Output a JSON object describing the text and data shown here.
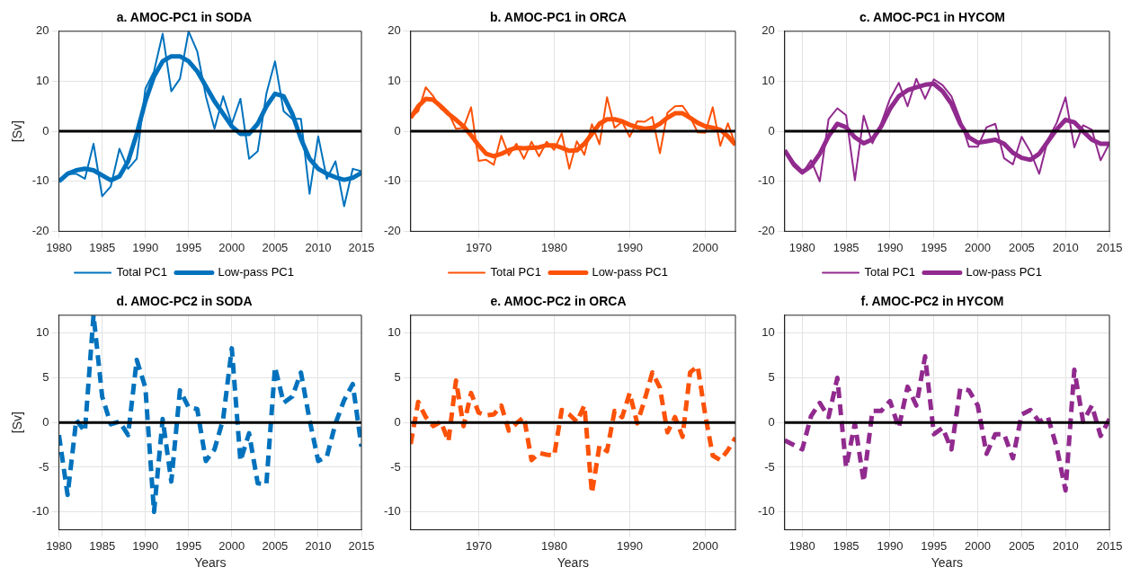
{
  "chart_data": [
    {
      "type": "line",
      "title": "a. AMOC-PC1 in SODA",
      "ylabel": "[Sv]",
      "xlim": [
        1980,
        2015
      ],
      "xticks": [
        1980,
        1985,
        1990,
        1995,
        2000,
        2005,
        2010,
        2015
      ],
      "ylim": [
        -20,
        20
      ],
      "yticks": [
        -20,
        -10,
        0,
        10,
        20
      ],
      "grid": true,
      "legend": "bottom",
      "ref_lines": [
        {
          "axis": "y",
          "value": 0,
          "color": "#000000"
        }
      ],
      "x": [
        1980,
        1981,
        1982,
        1983,
        1984,
        1985,
        1986,
        1987,
        1988,
        1989,
        1990,
        1991,
        1992,
        1993,
        1994,
        1995,
        1996,
        1997,
        1998,
        1999,
        2000,
        2001,
        2002,
        2003,
        2004,
        2005,
        2006,
        2007,
        2008,
        2009,
        2010,
        2011,
        2012,
        2013,
        2014,
        2015
      ],
      "series": [
        {
          "name": "Total PC1",
          "color": "#0072bd",
          "values": [
            -10,
            -8.5,
            -8.5,
            -9.5,
            -2.5,
            -13,
            -11,
            -3.5,
            -7.5,
            -5.5,
            8.5,
            12,
            19.5,
            8,
            10.5,
            20,
            16,
            7,
            0.5,
            7,
            1.5,
            6.5,
            -5.5,
            -4,
            7.5,
            14,
            4,
            2.5,
            2.5,
            -12.5,
            -1,
            -9.5,
            -6,
            -15,
            -7.5,
            -8
          ]
        },
        {
          "name": "Low-pass PC1",
          "color": "#0072bd",
          "values": [
            -10,
            -8.5,
            -7.8,
            -7.5,
            -7.8,
            -8.8,
            -9.8,
            -9,
            -6,
            -0.5,
            6,
            11,
            14,
            15,
            15,
            14,
            12,
            9,
            6,
            3.5,
            1,
            -0.5,
            -0.5,
            1.5,
            5,
            7.5,
            7,
            3.5,
            -1.5,
            -5.5,
            -7.5,
            -8.5,
            -9.2,
            -9.7,
            -9.3,
            -8.3
          ]
        }
      ]
    },
    {
      "type": "line",
      "title": "b. AMOC-PC1 in ORCA",
      "xlim": [
        1961,
        2004
      ],
      "xticks": [
        1970,
        1980,
        1990,
        2000
      ],
      "ylim": [
        -20,
        20
      ],
      "yticks": [
        -20,
        -10,
        0,
        10,
        20
      ],
      "grid": true,
      "legend": "bottom",
      "ref_lines": [
        {
          "axis": "y",
          "value": 0,
          "color": "#000000"
        }
      ],
      "x": [
        1961,
        1962,
        1963,
        1964,
        1965,
        1966,
        1967,
        1968,
        1969,
        1970,
        1971,
        1972,
        1973,
        1974,
        1975,
        1976,
        1977,
        1978,
        1979,
        1980,
        1981,
        1982,
        1983,
        1984,
        1985,
        1986,
        1987,
        1988,
        1989,
        1990,
        1991,
        1992,
        1993,
        1994,
        1995,
        1996,
        1997,
        1998,
        1999,
        2000,
        2001,
        2002,
        2003,
        2004
      ],
      "series": [
        {
          "name": "Total PC1",
          "color": "#fc5208",
          "values": [
            2.7,
            4,
            8.8,
            7,
            4.5,
            3.7,
            0.5,
            0.7,
            4.8,
            -5.9,
            -5.7,
            -6.7,
            -0.9,
            -4.8,
            -2.5,
            -5.5,
            -2.1,
            -5,
            -2.1,
            -3.7,
            -0.4,
            -7.5,
            -2,
            -4.7,
            1.4,
            -2.6,
            6.8,
            0.7,
            1.9,
            -1.1,
            2,
            1.9,
            2.9,
            -4.4,
            3.7,
            5,
            5.1,
            2.9,
            -0.2,
            -0.3,
            4.8,
            -2.9,
            1.6,
            -2.7
          ]
        },
        {
          "name": "Low-pass PC1",
          "color": "#fc5208",
          "values": [
            2.7,
            5,
            6.5,
            6.3,
            5,
            3.5,
            2.3,
            1,
            -0.8,
            -2.8,
            -4.5,
            -5,
            -4.5,
            -3.8,
            -3.3,
            -3.4,
            -3.3,
            -3.2,
            -2.8,
            -2.8,
            -3.3,
            -3.9,
            -3.8,
            -2.5,
            -0.5,
            1.5,
            2.4,
            2.4,
            2,
            1.3,
            0.8,
            0.5,
            0.7,
            1.5,
            2.7,
            3.6,
            3.6,
            2.7,
            1.7,
            1,
            0.7,
            0.3,
            -1,
            -2.7
          ]
        }
      ]
    },
    {
      "type": "line",
      "title": "c. AMOC-PC1 in HYCOM",
      "xlim": [
        1978,
        2015
      ],
      "xticks": [
        1980,
        1985,
        1990,
        1995,
        2000,
        2005,
        2010,
        2015
      ],
      "ylim": [
        -20,
        20
      ],
      "yticks": [
        -20,
        -10,
        0,
        10,
        20
      ],
      "grid": true,
      "legend": "bottom",
      "ref_lines": [
        {
          "axis": "y",
          "value": 0,
          "color": "#000000"
        }
      ],
      "x": [
        1978,
        1979,
        1980,
        1981,
        1982,
        1983,
        1984,
        1985,
        1986,
        1987,
        1988,
        1989,
        1990,
        1991,
        1992,
        1993,
        1994,
        1995,
        1996,
        1997,
        1998,
        1999,
        2000,
        2001,
        2002,
        2003,
        2004,
        2005,
        2006,
        2007,
        2008,
        2009,
        2010,
        2011,
        2012,
        2013,
        2014,
        2015
      ],
      "series": [
        {
          "name": "Total PC1",
          "color": "#912a8e",
          "values": [
            -3.8,
            -7,
            -8.5,
            -5.8,
            -10,
            2.4,
            4.6,
            3.2,
            -9.8,
            3.1,
            -2.4,
            1.6,
            6.5,
            9.7,
            5,
            10.5,
            6.5,
            10.4,
            9.2,
            7,
            2.4,
            -3.1,
            -3.1,
            0.8,
            1.5,
            -5.4,
            -6.6,
            -1.1,
            -4.1,
            -8.5,
            -1.6,
            1.7,
            6.8,
            -3.2,
            1.2,
            0.3,
            -5.8,
            -2.4
          ]
        },
        {
          "name": "Low-pass PC1",
          "color": "#912a8e",
          "values": [
            -3.8,
            -6.5,
            -8.2,
            -7,
            -4.5,
            -1,
            1.5,
            0.8,
            -1.2,
            -2.4,
            -1.6,
            1,
            4.5,
            7,
            8.2,
            8.8,
            9.3,
            9.5,
            8,
            5.5,
            1.5,
            -1.2,
            -2.3,
            -2,
            -1.7,
            -2.5,
            -4.3,
            -5.3,
            -5.7,
            -4.5,
            -2,
            0.4,
            2.3,
            1.8,
            0,
            -1.7,
            -2.5,
            -2.5
          ]
        }
      ]
    },
    {
      "type": "line",
      "title": "d. AMOC-PC2 in SODA",
      "xlabel": "Years",
      "ylabel": "[Sv]",
      "xlim": [
        1980,
        2015
      ],
      "xticks": [
        1980,
        1985,
        1990,
        1995,
        2000,
        2005,
        2010,
        2015
      ],
      "ylim": [
        -12,
        12
      ],
      "yticks": [
        -10,
        -5,
        0,
        5,
        10
      ],
      "grid": true,
      "line_style": "dashed",
      "ref_lines": [
        {
          "axis": "y",
          "value": 0,
          "color": "#000000"
        }
      ],
      "x": [
        1980,
        1981,
        1982,
        1983,
        1984,
        1985,
        1986,
        1987,
        1988,
        1989,
        1990,
        1991,
        1992,
        1993,
        1994,
        1995,
        1996,
        1997,
        1998,
        1999,
        2000,
        2001,
        2002,
        2003,
        2004,
        2005,
        2006,
        2007,
        2008,
        2009,
        2010,
        2011,
        2012,
        2013,
        2014,
        2015
      ],
      "series": [
        {
          "color": "#0072bd",
          "values": [
            -1.4,
            -8.1,
            0.3,
            -1,
            12,
            2.9,
            -0.2,
            0.1,
            -1.4,
            7,
            3.9,
            -10,
            0.4,
            -6.6,
            3.6,
            1.7,
            1.5,
            -4.3,
            -3,
            0.4,
            8.3,
            -4.3,
            -1.2,
            -6.8,
            -6.9,
            6.2,
            2.2,
            2.9,
            5.6,
            0.3,
            -4.3,
            -3.8,
            -0.1,
            2.5,
            4.3,
            -2.7
          ]
        }
      ]
    },
    {
      "type": "line",
      "title": "e. AMOC-PC2 in ORCA",
      "xlabel": "Years",
      "xlim": [
        1961,
        2004
      ],
      "xticks": [
        1970,
        1980,
        1990,
        2000
      ],
      "ylim": [
        -12,
        12
      ],
      "yticks": [
        -10,
        -5,
        0,
        5,
        10
      ],
      "grid": true,
      "line_style": "dashed",
      "ref_lines": [
        {
          "axis": "y",
          "value": 0,
          "color": "#000000"
        }
      ],
      "x": [
        1961,
        1962,
        1963,
        1964,
        1965,
        1966,
        1967,
        1968,
        1969,
        1970,
        1971,
        1972,
        1973,
        1974,
        1975,
        1976,
        1977,
        1978,
        1979,
        1980,
        1981,
        1982,
        1983,
        1984,
        1985,
        1986,
        1987,
        1988,
        1989,
        1990,
        1991,
        1992,
        1993,
        1994,
        1995,
        1996,
        1997,
        1998,
        1999,
        2000,
        2001,
        2002,
        2003,
        2004
      ],
      "series": [
        {
          "color": "#fc5208",
          "values": [
            -2.4,
            2.3,
            0.6,
            -0.4,
            0.1,
            -2.1,
            4.7,
            -0.4,
            3.3,
            1.1,
            0.8,
            0.9,
            1.9,
            -0.9,
            -0.1,
            0.6,
            -4.2,
            -3.4,
            -3.6,
            -3.7,
            1.4,
            0.9,
            0.1,
            1.9,
            -7.9,
            -2.6,
            -3.2,
            1.3,
            0.6,
            3.3,
            -0.1,
            2.6,
            5.6,
            3.9,
            -1.1,
            0.6,
            -1.6,
            5.6,
            6.3,
            0.9,
            -3.7,
            -4.2,
            -3.1,
            -1.7
          ]
        }
      ]
    },
    {
      "type": "line",
      "title": "f. AMOC-PC2 in HYCOM",
      "xlabel": "Years",
      "xlim": [
        1978,
        2015
      ],
      "xticks": [
        1980,
        1985,
        1990,
        1995,
        2000,
        2005,
        2010,
        2015
      ],
      "ylim": [
        -12,
        12
      ],
      "yticks": [
        -10,
        -5,
        0,
        5,
        10
      ],
      "grid": true,
      "line_style": "dashed",
      "ref_lines": [
        {
          "axis": "y",
          "value": 0,
          "color": "#000000"
        }
      ],
      "x": [
        1978,
        1979,
        1980,
        1981,
        1982,
        1983,
        1984,
        1985,
        1986,
        1987,
        1988,
        1989,
        1990,
        1991,
        1992,
        1993,
        1994,
        1995,
        1996,
        1997,
        1998,
        1999,
        2000,
        2001,
        2002,
        2003,
        2004,
        2005,
        2006,
        2007,
        2008,
        2009,
        2010,
        2011,
        2012,
        2013,
        2014,
        2015
      ],
      "series": [
        {
          "color": "#912a8e",
          "values": [
            -2,
            -2.5,
            -3,
            0.7,
            2.2,
            0.6,
            5,
            -5,
            -0.1,
            -6.6,
            1.3,
            1.3,
            2.4,
            -0.6,
            4,
            1.9,
            7.4,
            -1.3,
            -0.6,
            -3,
            3.8,
            3.6,
            1.9,
            -3.5,
            -1.3,
            -1.3,
            -4,
            0.9,
            1.4,
            0.1,
            0.6,
            -2.8,
            -7.6,
            5.9,
            0.1,
            1.9,
            -1.5,
            0.4
          ]
        }
      ]
    }
  ]
}
